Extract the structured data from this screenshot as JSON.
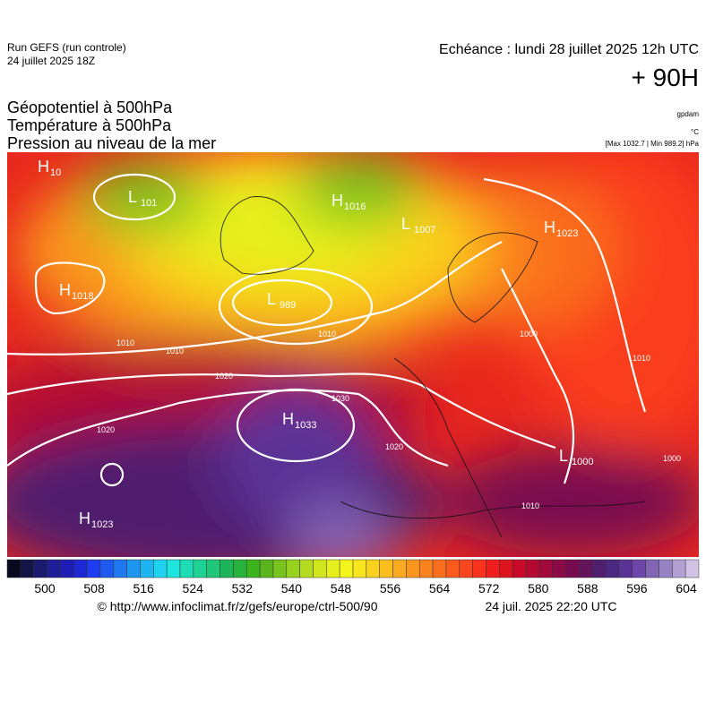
{
  "header": {
    "run": "Run GEFS (run controle)",
    "run_date": "24 juillet 2025 18Z",
    "echeance": "Echéance : lundi 28 juillet 2025 12h UTC",
    "offset": "+ 90H"
  },
  "titles": [
    "Géopotentiel à 500hPa",
    "Température à 500hPa",
    "Pression au niveau de la mer"
  ],
  "units": {
    "geopotential": "gpdam",
    "temperature": "°C",
    "pressure": "[Max 1032.7 | Min 989.2] hPa"
  },
  "centers": [
    {
      "letter": "H",
      "value": "10"
    },
    {
      "letter": "L",
      "value": "101"
    },
    {
      "letter": "H",
      "value": "1018"
    },
    {
      "letter": "L",
      "value": "989"
    },
    {
      "letter": "H",
      "value": "1016"
    },
    {
      "letter": "L",
      "value": "1007"
    },
    {
      "letter": "H",
      "value": "1023"
    },
    {
      "letter": "H",
      "value": "1033"
    },
    {
      "letter": "H",
      "value": "1023"
    },
    {
      "letter": "L",
      "value": "1000"
    }
  ],
  "contour_labels": [
    "1010",
    "1010",
    "1020",
    "1020",
    "1030",
    "1020",
    "1010",
    "1000",
    "1010",
    "1000",
    "1010"
  ],
  "colorbar": {
    "colors": [
      "#0a0a1e",
      "#141446",
      "#1a1a6e",
      "#1e1e96",
      "#1e1eb4",
      "#1e28d2",
      "#1e3cf0",
      "#1e5af0",
      "#1e78f0",
      "#1e96f0",
      "#1eb4f0",
      "#1ed2f0",
      "#1ee6dc",
      "#1edcb4",
      "#1ed296",
      "#1ec878",
      "#1eb45a",
      "#28b43c",
      "#3cb41e",
      "#5ab41e",
      "#78c31e",
      "#96d21e",
      "#b4dc1e",
      "#d2e61e",
      "#e6f01e",
      "#f5f51e",
      "#fae61e",
      "#fad21e",
      "#fabe1e",
      "#faaa1e",
      "#fa961e",
      "#fa821e",
      "#fa6e1e",
      "#fa5a1e",
      "#fa461e",
      "#fa321e",
      "#f01e1e",
      "#dc141e",
      "#c80a28",
      "#b40a32",
      "#a00a3c",
      "#8c0a46",
      "#780a50",
      "#64145a",
      "#501e6e",
      "#4b2882",
      "#5a3296",
      "#6e46aa",
      "#8264b4",
      "#9682c3",
      "#b4a0d2",
      "#d2c3e6"
    ],
    "ticks": [
      500,
      508,
      516,
      524,
      532,
      540,
      548,
      556,
      564,
      572,
      580,
      588,
      596,
      604
    ]
  },
  "footer": {
    "source": "© http://www.infoclimat.fr/z/gefs/europe/ctrl-500/90",
    "generated": "24 juil. 2025 22:20 UTC"
  }
}
